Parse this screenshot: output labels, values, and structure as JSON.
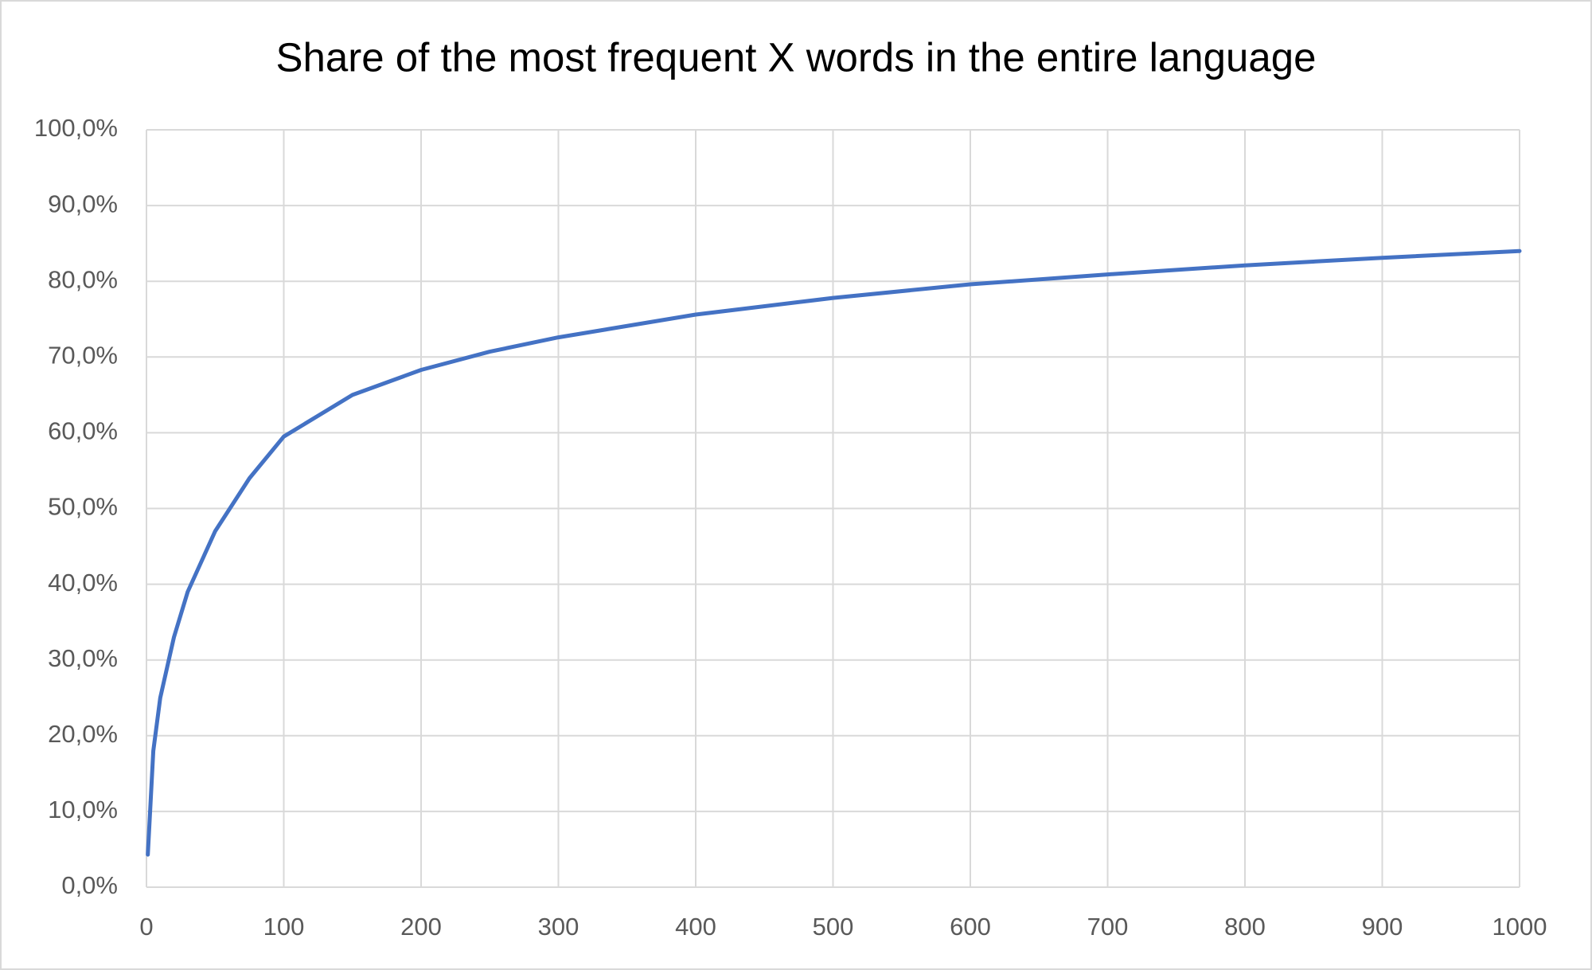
{
  "chart_data": {
    "type": "line",
    "title": "Share of the most frequent X words in the entire language",
    "x": [
      1,
      5,
      10,
      20,
      30,
      50,
      75,
      100,
      150,
      200,
      250,
      300,
      400,
      500,
      600,
      700,
      800,
      900,
      1000
    ],
    "values": [
      4.3,
      18,
      25,
      33,
      39,
      47,
      54,
      59.5,
      65,
      68.3,
      70.7,
      72.6,
      75.6,
      77.8,
      79.6,
      80.9,
      82.1,
      83.1,
      84
    ],
    "color": "#4472c4",
    "xlim": [
      0,
      1000
    ],
    "xticks": [
      0,
      100,
      200,
      300,
      400,
      500,
      600,
      700,
      800,
      900,
      1000
    ],
    "ylim": [
      0,
      100
    ],
    "yticks": [
      {
        "value": 0,
        "label": "0,0%"
      },
      {
        "value": 10,
        "label": "10,0%"
      },
      {
        "value": 20,
        "label": "20,0%"
      },
      {
        "value": 30,
        "label": "30,0%"
      },
      {
        "value": 40,
        "label": "40,0%"
      },
      {
        "value": 50,
        "label": "50,0%"
      },
      {
        "value": 60,
        "label": "60,0%"
      },
      {
        "value": 70,
        "label": "70,0%"
      },
      {
        "value": 80,
        "label": "80,0%"
      },
      {
        "value": 90,
        "label": "90,0%"
      },
      {
        "value": 100,
        "label": "100,0%"
      }
    ],
    "grid": true
  }
}
